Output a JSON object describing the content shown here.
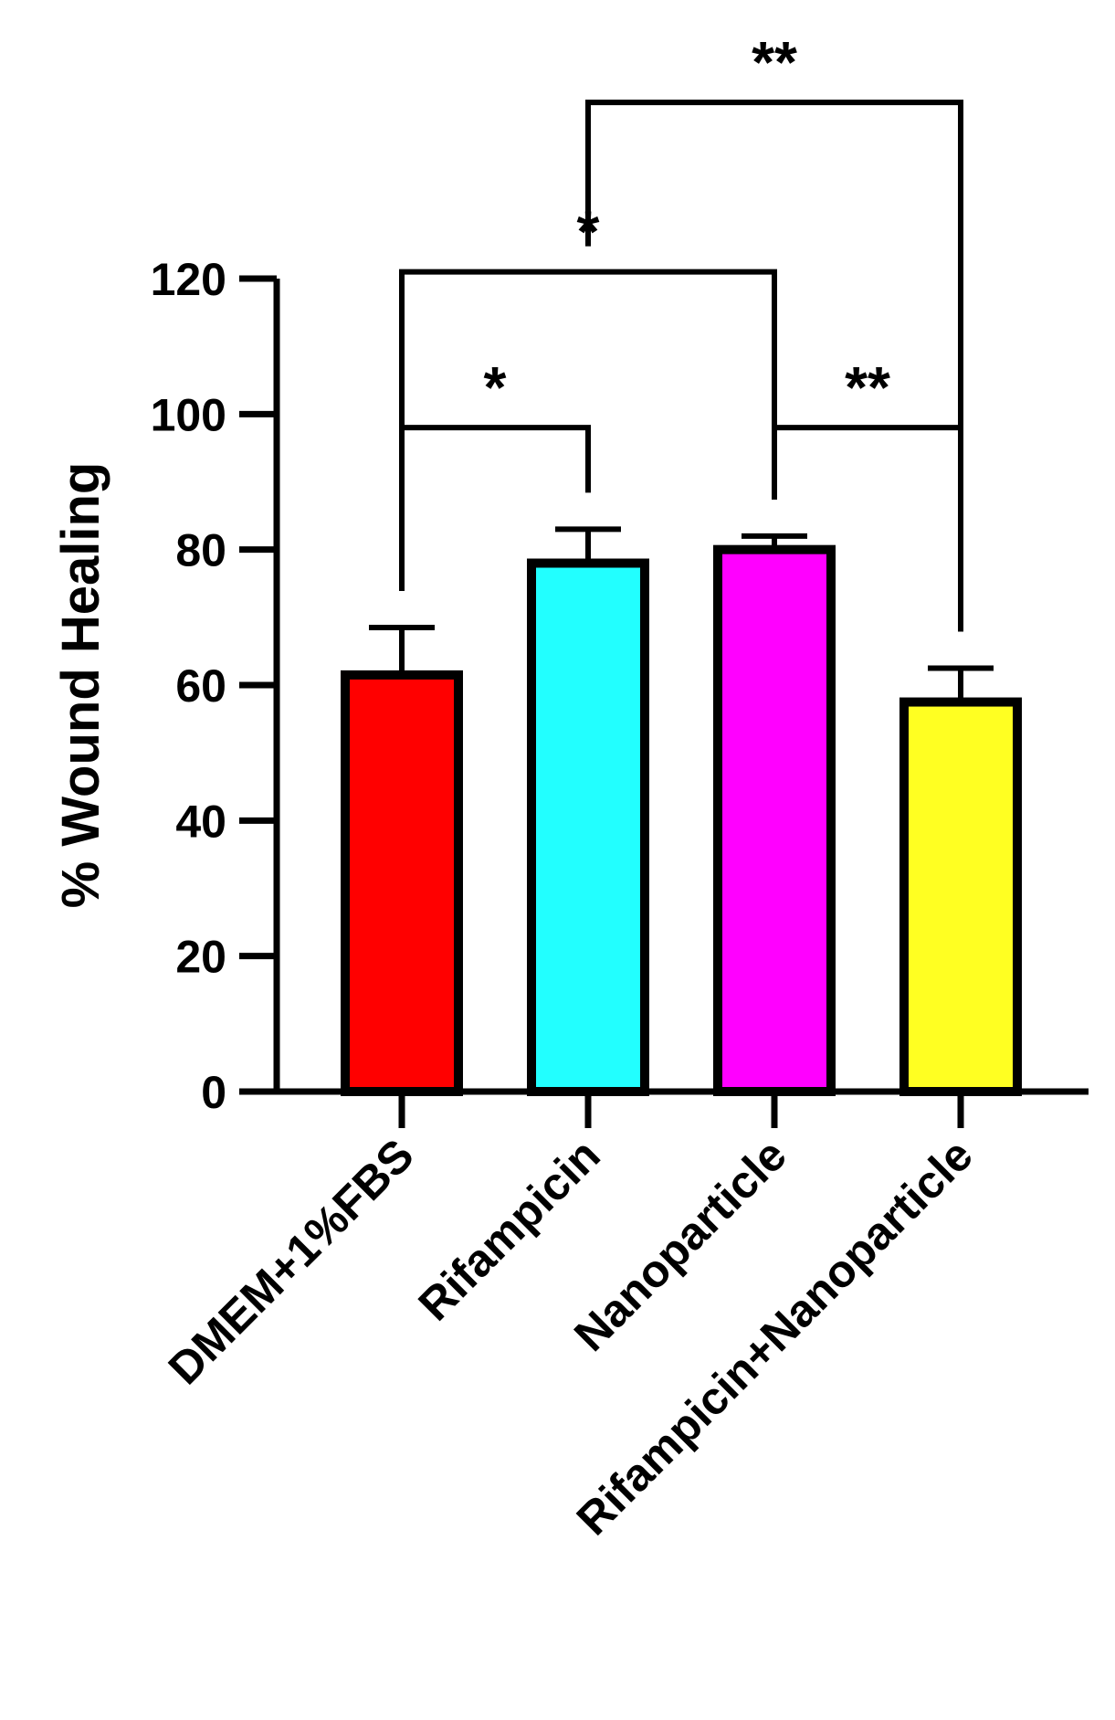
{
  "chart_data": {
    "type": "bar",
    "ylabel": "% Wound Healing",
    "xlabel": "",
    "ylim": [
      0,
      120
    ],
    "yticks": [
      0,
      20,
      40,
      60,
      80,
      100,
      120
    ],
    "ytick_labels": [
      "0",
      "20",
      "40",
      "60",
      "80",
      "100",
      "120"
    ],
    "categories": [
      "DMEM+1%FBS",
      "Rifampicin",
      "Nanoparticle",
      "Rifampicin+Nanoparticle"
    ],
    "values": [
      61.5,
      78,
      80,
      57.5
    ],
    "error": [
      7,
      5,
      2,
      5
    ],
    "colors": [
      "#ff0000",
      "#22ffff",
      "#ff00ff",
      "#ffff22"
    ],
    "grid": false,
    "significance": [
      {
        "from": 0,
        "to": 1,
        "label": "*",
        "level": 98
      },
      {
        "from": 2,
        "to": 3,
        "label": "**",
        "level": 98
      },
      {
        "from": 0,
        "to": 2,
        "label": "*",
        "level": 121
      },
      {
        "from": 1,
        "to": 3,
        "label": "**",
        "level": 146
      }
    ]
  }
}
